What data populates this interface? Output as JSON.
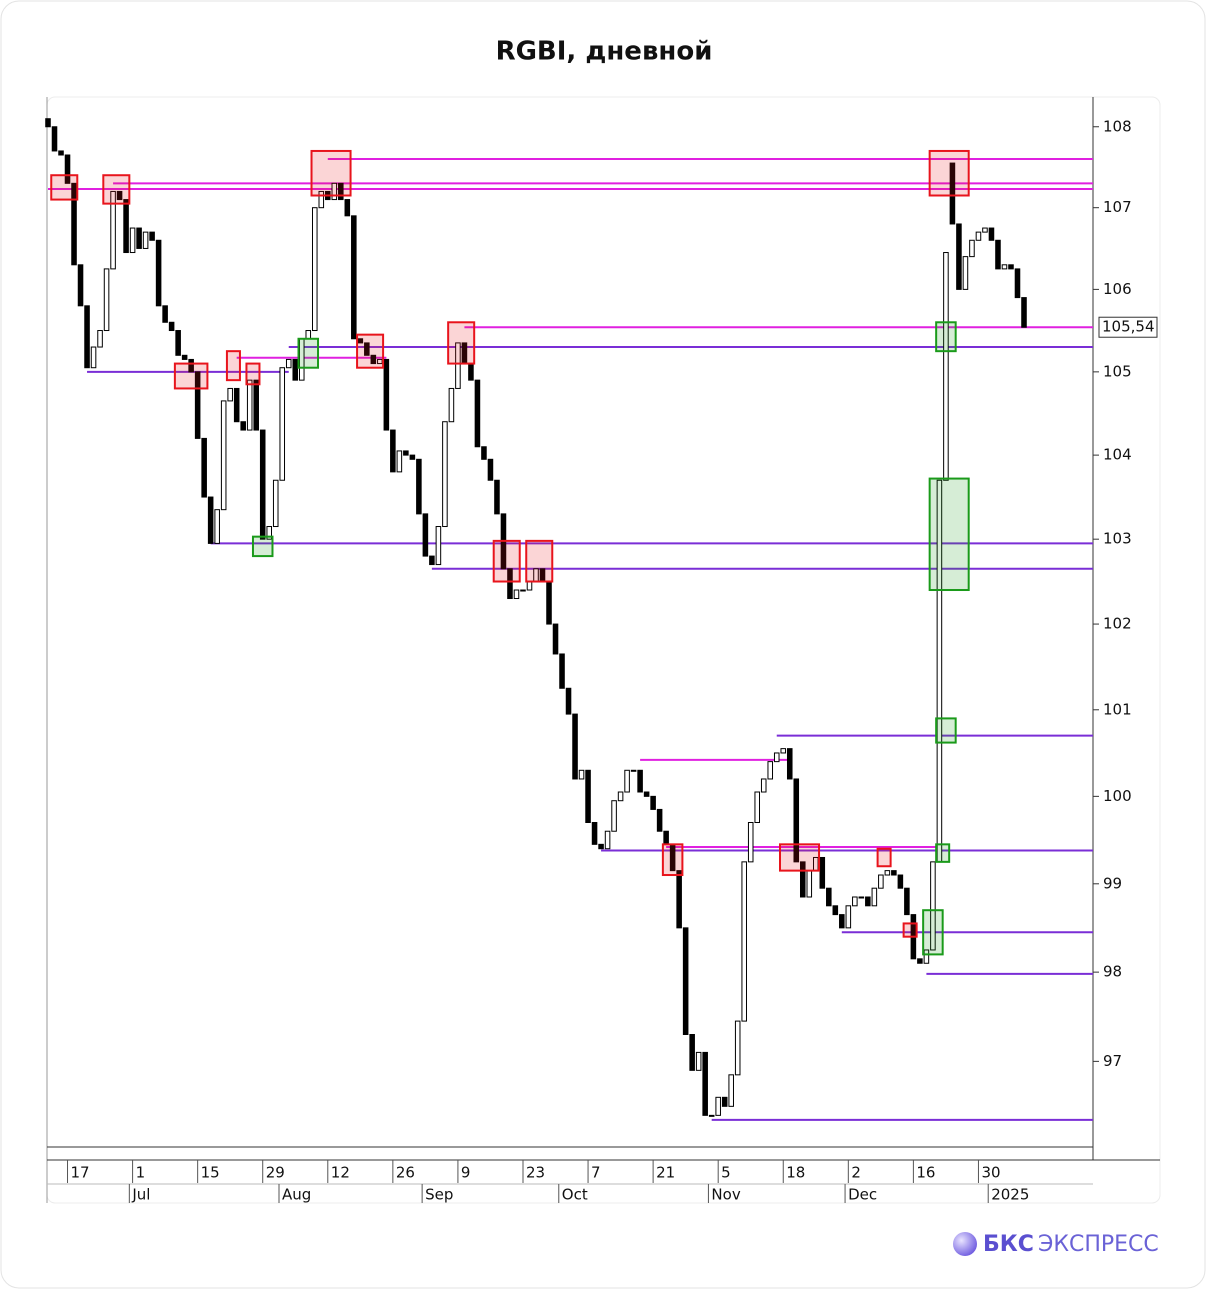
{
  "chart_data": {
    "type": "candlestick",
    "title": "RGBI, дневной",
    "log_scale": true,
    "ylim": [
      96.05,
      108.37
    ],
    "yticks": [
      97,
      98,
      99,
      100,
      101,
      102,
      103,
      104,
      105,
      106,
      107,
      108
    ],
    "categories": [
      null,
      null,
      null,
      "17",
      null,
      null,
      null,
      null,
      null,
      null,
      null,
      null,
      null,
      "1",
      null,
      null,
      null,
      null,
      null,
      null,
      null,
      null,
      null,
      "15",
      null,
      null,
      null,
      null,
      null,
      null,
      null,
      null,
      null,
      "29",
      null,
      null,
      null,
      null,
      null,
      null,
      null,
      null,
      null,
      "12",
      null,
      null,
      null,
      null,
      null,
      null,
      null,
      null,
      null,
      "26",
      null,
      null,
      null,
      null,
      null,
      null,
      null,
      null,
      null,
      "9",
      null,
      null,
      null,
      null,
      null,
      null,
      null,
      null,
      null,
      "23",
      null,
      null,
      null,
      null,
      null,
      null,
      null,
      null,
      null,
      "7",
      null,
      null,
      null,
      null,
      null,
      null,
      null,
      null,
      null,
      "21",
      null,
      null,
      null,
      null,
      null,
      null,
      null,
      null,
      null,
      "5",
      null,
      null,
      null,
      null,
      null,
      null,
      null,
      null,
      null,
      "18",
      null,
      null,
      null,
      null,
      null,
      null,
      null,
      null,
      null,
      "2",
      null,
      null,
      null,
      null,
      null,
      null,
      null,
      null,
      null,
      "16",
      null,
      null,
      null,
      null,
      null,
      null,
      null,
      null,
      null,
      "30",
      null,
      null,
      null,
      null,
      null,
      null,
      null
    ],
    "months": [
      null,
      null,
      null,
      null,
      null,
      null,
      null,
      null,
      null,
      null,
      null,
      null,
      null,
      "Jul",
      null,
      null,
      null,
      null,
      null,
      null,
      null,
      null,
      null,
      null,
      null,
      null,
      null,
      null,
      null,
      null,
      null,
      null,
      null,
      null,
      null,
      null,
      "Aug",
      null,
      null,
      null,
      null,
      null,
      null,
      null,
      null,
      null,
      null,
      null,
      null,
      null,
      null,
      null,
      null,
      null,
      null,
      null,
      null,
      null,
      "Sep",
      null,
      null,
      null,
      null,
      null,
      null,
      null,
      null,
      null,
      null,
      null,
      null,
      null,
      null,
      null,
      null,
      null,
      null,
      null,
      null,
      "Oct",
      null,
      null,
      null,
      null,
      null,
      null,
      null,
      null,
      null,
      null,
      null,
      null,
      null,
      null,
      null,
      null,
      null,
      null,
      null,
      null,
      null,
      null,
      "Nov",
      null,
      null,
      null,
      null,
      null,
      null,
      null,
      null,
      null,
      null,
      null,
      null,
      null,
      null,
      null,
      null,
      null,
      null,
      null,
      null,
      "Dec",
      null,
      null,
      null,
      null,
      null,
      null,
      null,
      null,
      null,
      null,
      null,
      null,
      null,
      null,
      null,
      null,
      null,
      null,
      null,
      null,
      null,
      "2025",
      null,
      null,
      null,
      null,
      null
    ],
    "open": [
      108.1,
      108.0,
      107.7,
      107.65,
      107.3,
      106.3,
      105.8,
      105.05,
      105.3,
      105.5,
      106.25,
      107.2,
      107.1,
      106.45,
      106.75,
      106.5,
      106.7,
      106.6,
      105.8,
      105.6,
      105.5,
      105.2,
      105.15,
      105.0,
      104.2,
      103.5,
      102.95,
      103.35,
      104.65,
      104.8,
      104.4,
      104.3,
      104.9,
      104.3,
      103.0,
      103.15,
      103.7,
      105.05,
      105.15,
      104.9,
      105.4,
      105.5,
      107.0,
      107.2,
      107.1,
      107.3,
      107.1,
      106.9,
      105.4,
      105.35,
      105.2,
      105.1,
      105.15,
      104.3,
      103.8,
      104.05,
      104.0,
      103.95,
      103.3,
      102.8,
      102.7,
      103.15,
      104.4,
      104.8,
      105.35,
      105.1,
      104.9,
      104.1,
      103.95,
      103.7,
      103.3,
      102.65,
      102.3,
      102.4,
      102.4,
      102.5,
      102.65,
      102.5,
      102.0,
      101.65,
      101.25,
      100.95,
      100.2,
      100.3,
      99.7,
      99.45,
      99.4,
      99.6,
      99.95,
      100.05,
      100.3,
      100.3,
      100.05,
      100.0,
      99.85,
      99.6,
      99.45,
      99.15,
      98.5,
      97.3,
      96.9,
      97.1,
      96.4,
      96.4,
      96.6,
      96.5,
      96.85,
      97.45,
      99.25,
      99.7,
      100.05,
      100.2,
      100.4,
      100.5,
      100.55,
      100.2,
      99.25,
      98.85,
      99.15,
      99.3,
      98.95,
      98.75,
      98.65,
      98.5,
      98.75,
      98.85,
      98.85,
      98.75,
      98.95,
      99.1,
      99.15,
      99.1,
      98.95,
      98.65,
      98.15,
      98.1,
      98.25,
      99.25,
      103.7,
      107.55,
      106.8,
      106.0,
      106.4,
      106.6,
      106.7,
      106.75,
      106.6,
      106.25,
      106.3,
      106.25,
      105.9
    ],
    "close": [
      108.0,
      107.7,
      107.65,
      107.3,
      106.3,
      105.8,
      105.05,
      105.3,
      105.5,
      106.25,
      107.2,
      107.1,
      106.45,
      106.75,
      106.5,
      106.7,
      106.6,
      105.8,
      105.6,
      105.5,
      105.2,
      105.15,
      105.0,
      104.2,
      103.5,
      102.95,
      103.35,
      104.65,
      104.8,
      104.4,
      104.3,
      104.9,
      104.3,
      103.0,
      103.15,
      103.7,
      105.05,
      105.15,
      104.9,
      105.4,
      105.5,
      107.0,
      107.2,
      107.1,
      107.3,
      107.1,
      106.9,
      105.4,
      105.35,
      105.2,
      105.1,
      105.15,
      104.3,
      103.8,
      104.05,
      104.0,
      103.95,
      103.3,
      102.8,
      102.7,
      103.15,
      104.4,
      104.8,
      105.35,
      105.1,
      104.9,
      104.1,
      103.95,
      103.7,
      103.3,
      102.65,
      102.3,
      102.4,
      102.4,
      102.5,
      102.65,
      102.5,
      102.0,
      101.65,
      101.25,
      100.95,
      100.2,
      100.3,
      99.7,
      99.45,
      99.4,
      99.6,
      99.95,
      100.05,
      100.3,
      100.3,
      100.05,
      100.0,
      99.85,
      99.6,
      99.45,
      99.15,
      98.5,
      97.3,
      96.9,
      97.1,
      96.4,
      96.4,
      96.6,
      96.5,
      96.85,
      97.45,
      99.25,
      99.7,
      100.05,
      100.2,
      100.4,
      100.5,
      100.55,
      100.2,
      99.25,
      98.85,
      99.15,
      99.3,
      98.95,
      98.75,
      98.65,
      98.5,
      98.75,
      98.85,
      98.85,
      98.75,
      98.95,
      99.1,
      99.15,
      99.1,
      98.95,
      98.65,
      98.15,
      98.1,
      98.25,
      99.25,
      103.7,
      106.45,
      106.8,
      106.0,
      106.4,
      106.6,
      106.7,
      106.75,
      106.6,
      106.25,
      106.3,
      106.25,
      105.9,
      105.54
    ],
    "last_label": {
      "value": 105.54,
      "label": "105,54"
    },
    "levels": [
      {
        "value": 107.6,
        "from": 43,
        "color": "#e020e0"
      },
      {
        "value": 107.3,
        "from": 10,
        "color": "#e020e0"
      },
      {
        "value": 107.23,
        "from": 0,
        "color": "#e020e0"
      },
      {
        "value": 105.54,
        "from": 64,
        "color": "#e020e0"
      },
      {
        "value": 105.3,
        "from": 37,
        "color": "#7a2ed6"
      },
      {
        "value": 105.17,
        "from": 29,
        "to": 52,
        "color": "#e020e0"
      },
      {
        "value": 105.0,
        "from": 6,
        "to": 37,
        "color": "#7a2ed6"
      },
      {
        "value": 102.95,
        "from": 25,
        "color": "#7a2ed6"
      },
      {
        "value": 102.65,
        "from": 59,
        "color": "#7a2ed6"
      },
      {
        "value": 100.7,
        "from": 112,
        "color": "#7a2ed6"
      },
      {
        "value": 100.42,
        "from": 91,
        "to": 114,
        "color": "#e020e0"
      },
      {
        "value": 99.38,
        "from": 85,
        "color": "#7a2ed6"
      },
      {
        "value": 99.42,
        "from": 95,
        "to": 137,
        "color": "#e020e0"
      },
      {
        "value": 98.45,
        "from": 122,
        "color": "#7a2ed6"
      },
      {
        "value": 97.98,
        "from": 135,
        "color": "#7a2ed6"
      },
      {
        "value": 96.35,
        "from": 102,
        "color": "#7a2ed6"
      }
    ],
    "highlights": [
      {
        "from": 1,
        "to": 4,
        "high": 107.4,
        "low": 107.1,
        "color": "#e8141c"
      },
      {
        "from": 9,
        "to": 12,
        "high": 107.4,
        "low": 107.05,
        "color": "#e8141c"
      },
      {
        "from": 41,
        "to": 46,
        "high": 107.7,
        "low": 107.15,
        "color": "#e8141c"
      },
      {
        "from": 20,
        "to": 24,
        "high": 105.1,
        "low": 104.8,
        "color": "#e8141c"
      },
      {
        "from": 28,
        "to": 29,
        "high": 105.25,
        "low": 104.9,
        "color": "#e8141c"
      },
      {
        "from": 31,
        "to": 32,
        "high": 105.1,
        "low": 104.85,
        "color": "#e8141c"
      },
      {
        "from": 48,
        "to": 51,
        "high": 105.45,
        "low": 105.05,
        "color": "#e8141c"
      },
      {
        "from": 62,
        "to": 65,
        "high": 105.6,
        "low": 105.1,
        "color": "#e8141c"
      },
      {
        "from": 69,
        "to": 72,
        "high": 102.98,
        "low": 102.5,
        "color": "#e8141c"
      },
      {
        "from": 74,
        "to": 77,
        "high": 102.98,
        "low": 102.5,
        "color": "#e8141c"
      },
      {
        "from": 95,
        "to": 97,
        "high": 99.45,
        "low": 99.1,
        "color": "#e8141c"
      },
      {
        "from": 113,
        "to": 118,
        "high": 99.45,
        "low": 99.15,
        "color": "#e8141c"
      },
      {
        "from": 128,
        "to": 129,
        "high": 99.4,
        "low": 99.2,
        "color": "#e8141c"
      },
      {
        "from": 132,
        "to": 133,
        "high": 98.55,
        "low": 98.4,
        "color": "#e8141c"
      },
      {
        "from": 136,
        "to": 141,
        "high": 107.7,
        "low": 107.15,
        "color": "#e8141c"
      },
      {
        "from": 32,
        "to": 34,
        "high": 103.03,
        "low": 102.8,
        "color": "#1a9a1a"
      },
      {
        "from": 39,
        "to": 41,
        "high": 105.4,
        "low": 105.05,
        "color": "#1a9a1a"
      },
      {
        "from": 137,
        "to": 139,
        "high": 105.6,
        "low": 105.25,
        "color": "#1a9a1a"
      },
      {
        "from": 136,
        "to": 141,
        "high": 103.72,
        "low": 102.4,
        "color": "#1a9a1a"
      },
      {
        "from": 137,
        "to": 139,
        "high": 100.9,
        "low": 100.62,
        "color": "#1a9a1a"
      },
      {
        "from": 137,
        "to": 138,
        "high": 99.45,
        "low": 99.25,
        "color": "#1a9a1a"
      },
      {
        "from": 135,
        "to": 137,
        "high": 98.7,
        "low": 98.2,
        "color": "#1a9a1a"
      }
    ]
  },
  "brand": {
    "name": "БКС",
    "product": "ЭКСПРЕСС"
  }
}
